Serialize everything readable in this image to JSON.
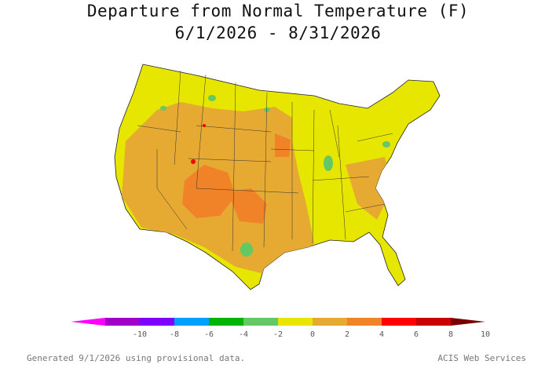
{
  "title": "Departure from Normal Temperature (F)",
  "subtitle": "6/1/2026 - 8/31/2026",
  "legend": {
    "ticks": [
      "-10",
      "-8",
      "-6",
      "-4",
      "-2",
      "0",
      "2",
      "4",
      "6",
      "8",
      "10"
    ],
    "colors": [
      "#ff00ff",
      "#a000c8",
      "#8000ff",
      "#00a0ff",
      "#00b400",
      "#64c864",
      "#e6e600",
      "#e6aa32",
      "#f08228",
      "#ff0000",
      "#c80000",
      "#780000"
    ]
  },
  "footer": {
    "generated": "Generated 9/1/2026 using provisional data.",
    "credit": "ACIS Web Services"
  }
}
